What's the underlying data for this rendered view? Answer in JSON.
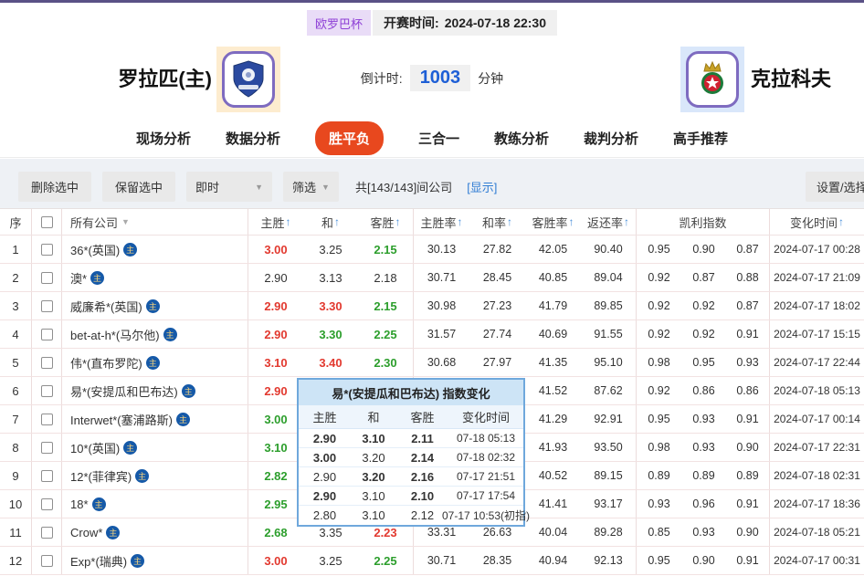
{
  "colors": {
    "accent": "#e8481e",
    "odds_up_red": "#e2392f",
    "odds_down_green": "#2c9e2c",
    "link_blue": "#2f7cd4",
    "countdown_blue": "#1e5fd6",
    "league_purple": "#8e3fd6",
    "topbar_purple": "#5a5186"
  },
  "icons": {
    "sort_asc": "↑",
    "dropdown_caret": "▼",
    "company_tag": "主"
  },
  "top": {
    "league": "欧罗巴杯",
    "kickoff_label": "开赛时间:",
    "kickoff_time": "2024-07-18 22:30",
    "home_team": "罗拉匹(主)",
    "away_team": "克拉科夫",
    "countdown_label": "倒计时:",
    "countdown_value": "1003",
    "countdown_unit": "分钟"
  },
  "nav": {
    "tabs": [
      {
        "label": "现场分析",
        "active": false
      },
      {
        "label": "数据分析",
        "active": false
      },
      {
        "label": "胜平负",
        "active": true
      },
      {
        "label": "三合一",
        "active": false
      },
      {
        "label": "教练分析",
        "active": false
      },
      {
        "label": "裁判分析",
        "active": false
      },
      {
        "label": "高手推荐",
        "active": false
      }
    ]
  },
  "toolbar": {
    "delete_selected": "删除选中",
    "keep_selected": "保留选中",
    "instant_dropdown": "即时",
    "filter_dropdown": "筛选",
    "company_count": "共[143/143]间公司",
    "show_link": "[显示]",
    "settings_button": "设置/选择"
  },
  "table": {
    "headers": {
      "seq": "序",
      "company": "所有公司",
      "home": "主胜",
      "draw": "和",
      "away": "客胜",
      "home_rate": "主胜率",
      "draw_rate": "和率",
      "away_rate": "客胜率",
      "return_rate": "返还率",
      "kelly": "凯利指数",
      "change_time": "变化时间"
    },
    "rows": [
      {
        "seq": "1",
        "company": "36*(英国)",
        "odds": [
          {
            "v": "3.00",
            "c": "r"
          },
          {
            "v": "3.25",
            "c": "k"
          },
          {
            "v": "2.15",
            "c": "g"
          }
        ],
        "rates": [
          "30.13",
          "27.82",
          "42.05",
          "90.40"
        ],
        "kelly": [
          "0.95",
          "0.90",
          "0.87"
        ],
        "time": "2024-07-17 00:28"
      },
      {
        "seq": "2",
        "company": "澳*",
        "odds": [
          {
            "v": "2.90",
            "c": "k"
          },
          {
            "v": "3.13",
            "c": "k"
          },
          {
            "v": "2.18",
            "c": "k"
          }
        ],
        "rates": [
          "30.71",
          "28.45",
          "40.85",
          "89.04"
        ],
        "kelly": [
          "0.92",
          "0.87",
          "0.88"
        ],
        "time": "2024-07-17 21:09"
      },
      {
        "seq": "3",
        "company": "威廉希*(英国)",
        "odds": [
          {
            "v": "2.90",
            "c": "r"
          },
          {
            "v": "3.30",
            "c": "r"
          },
          {
            "v": "2.15",
            "c": "g"
          }
        ],
        "rates": [
          "30.98",
          "27.23",
          "41.79",
          "89.85"
        ],
        "kelly": [
          "0.92",
          "0.92",
          "0.87"
        ],
        "time": "2024-07-17 18:02"
      },
      {
        "seq": "4",
        "company": "bet-at-h*(马尔他)",
        "odds": [
          {
            "v": "2.90",
            "c": "r"
          },
          {
            "v": "3.30",
            "c": "g"
          },
          {
            "v": "2.25",
            "c": "g"
          }
        ],
        "rates": [
          "31.57",
          "27.74",
          "40.69",
          "91.55"
        ],
        "kelly": [
          "0.92",
          "0.92",
          "0.91"
        ],
        "time": "2024-07-17 15:15"
      },
      {
        "seq": "5",
        "company": "伟*(直布罗陀)",
        "odds": [
          {
            "v": "3.10",
            "c": "r"
          },
          {
            "v": "3.40",
            "c": "r"
          },
          {
            "v": "2.30",
            "c": "g"
          }
        ],
        "rates": [
          "30.68",
          "27.97",
          "41.35",
          "95.10"
        ],
        "kelly": [
          "0.98",
          "0.95",
          "0.93"
        ],
        "time": "2024-07-17 22:44"
      },
      {
        "seq": "6",
        "company": "易*(安提瓜和巴布达)",
        "odds": [
          {
            "v": "2.90",
            "c": "r"
          },
          {
            "v": "",
            "c": "k"
          },
          {
            "v": "",
            "c": "k"
          }
        ],
        "rates": [
          "",
          "",
          "41.52",
          "87.62"
        ],
        "kelly": [
          "0.92",
          "0.86",
          "0.86"
        ],
        "time": "2024-07-18 05:13"
      },
      {
        "seq": "7",
        "company": "Interwet*(塞浦路斯)",
        "odds": [
          {
            "v": "3.00",
            "c": "g"
          },
          {
            "v": "",
            "c": "k"
          },
          {
            "v": "",
            "c": "k"
          }
        ],
        "rates": [
          "",
          "",
          "41.29",
          "92.91"
        ],
        "kelly": [
          "0.95",
          "0.93",
          "0.91"
        ],
        "time": "2024-07-17 00:14"
      },
      {
        "seq": "8",
        "company": "10*(英国)",
        "odds": [
          {
            "v": "3.10",
            "c": "g"
          },
          {
            "v": "",
            "c": "k"
          },
          {
            "v": "",
            "c": "k"
          }
        ],
        "rates": [
          "",
          "",
          "41.93",
          "93.50"
        ],
        "kelly": [
          "0.98",
          "0.93",
          "0.90"
        ],
        "time": "2024-07-17 22:31"
      },
      {
        "seq": "9",
        "company": "12*(菲律宾)",
        "odds": [
          {
            "v": "2.82",
            "c": "g"
          },
          {
            "v": "",
            "c": "k"
          },
          {
            "v": "",
            "c": "k"
          }
        ],
        "rates": [
          "",
          "",
          "40.52",
          "89.15"
        ],
        "kelly": [
          "0.89",
          "0.89",
          "0.89"
        ],
        "time": "2024-07-18 02:31"
      },
      {
        "seq": "10",
        "company": "18*",
        "odds": [
          {
            "v": "2.95",
            "c": "g"
          },
          {
            "v": "",
            "c": "k"
          },
          {
            "v": "",
            "c": "k"
          }
        ],
        "rates": [
          "",
          "",
          "41.41",
          "93.17"
        ],
        "kelly": [
          "0.93",
          "0.96",
          "0.91"
        ],
        "time": "2024-07-17 18:36"
      },
      {
        "seq": "11",
        "company": "Crow*",
        "odds": [
          {
            "v": "2.68",
            "c": "g"
          },
          {
            "v": "3.35",
            "c": "k"
          },
          {
            "v": "2.23",
            "c": "r"
          }
        ],
        "rates": [
          "33.31",
          "26.63",
          "40.04",
          "89.28"
        ],
        "kelly": [
          "0.85",
          "0.93",
          "0.90"
        ],
        "time": "2024-07-18 05:21"
      },
      {
        "seq": "12",
        "company": "Exp*(瑞典)",
        "odds": [
          {
            "v": "3.00",
            "c": "r"
          },
          {
            "v": "3.25",
            "c": "k"
          },
          {
            "v": "2.25",
            "c": "g"
          }
        ],
        "rates": [
          "30.71",
          "28.35",
          "40.94",
          "92.13"
        ],
        "kelly": [
          "0.95",
          "0.90",
          "0.91"
        ],
        "time": "2024-07-17 00:31"
      }
    ]
  },
  "popup": {
    "title": "易*(安提瓜和巴布达) 指数变化",
    "headers": [
      "主胜",
      "和",
      "客胜",
      "变化时间"
    ],
    "rows": [
      {
        "home": {
          "v": "2.90",
          "c": "g"
        },
        "draw": {
          "v": "3.10",
          "c": "g"
        },
        "away": {
          "v": "2.11",
          "c": "g"
        },
        "time": "07-18 05:13"
      },
      {
        "home": {
          "v": "3.00",
          "c": "r"
        },
        "draw": {
          "v": "3.20",
          "c": "k"
        },
        "away": {
          "v": "2.14",
          "c": "g"
        },
        "time": "07-18 02:32"
      },
      {
        "home": {
          "v": "2.90",
          "c": "k"
        },
        "draw": {
          "v": "3.20",
          "c": "r"
        },
        "away": {
          "v": "2.16",
          "c": "r"
        },
        "time": "07-17 21:51"
      },
      {
        "home": {
          "v": "2.90",
          "c": "r"
        },
        "draw": {
          "v": "3.10",
          "c": "k"
        },
        "away": {
          "v": "2.10",
          "c": "g"
        },
        "time": "07-17 17:54"
      },
      {
        "home": {
          "v": "2.80",
          "c": "k"
        },
        "draw": {
          "v": "3.10",
          "c": "k"
        },
        "away": {
          "v": "2.12",
          "c": "k"
        },
        "time": "07-17 10:53(初指)"
      }
    ]
  }
}
